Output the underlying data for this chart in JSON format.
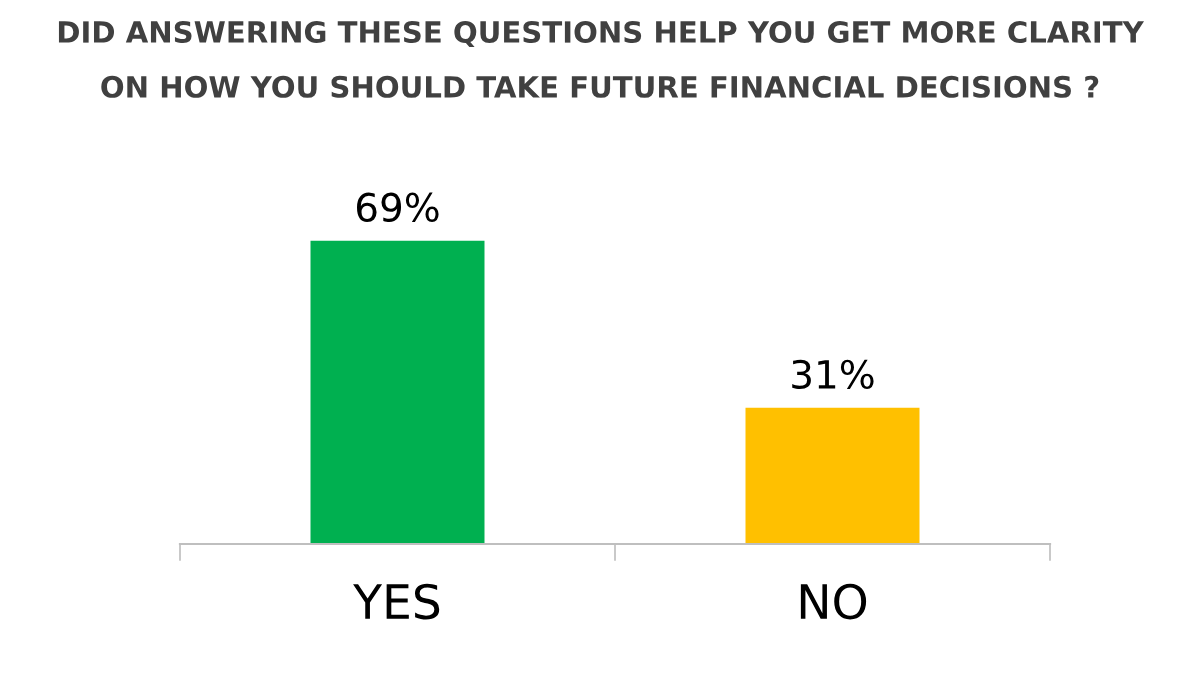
{
  "chart_data": {
    "type": "bar",
    "title": "DID ANSWERING THESE QUESTIONS HELP YOU GET MORE CLARITY\nON HOW YOU SHOULD TAKE FUTURE FINANCIAL DECISIONS ?",
    "categories": [
      "YES",
      "NO"
    ],
    "values": [
      69,
      31
    ],
    "colors": [
      "#00b050",
      "#ffc000"
    ],
    "data_labels": true,
    "value_labels": [
      "69%",
      "31%"
    ],
    "grid": false,
    "legend": false
  }
}
